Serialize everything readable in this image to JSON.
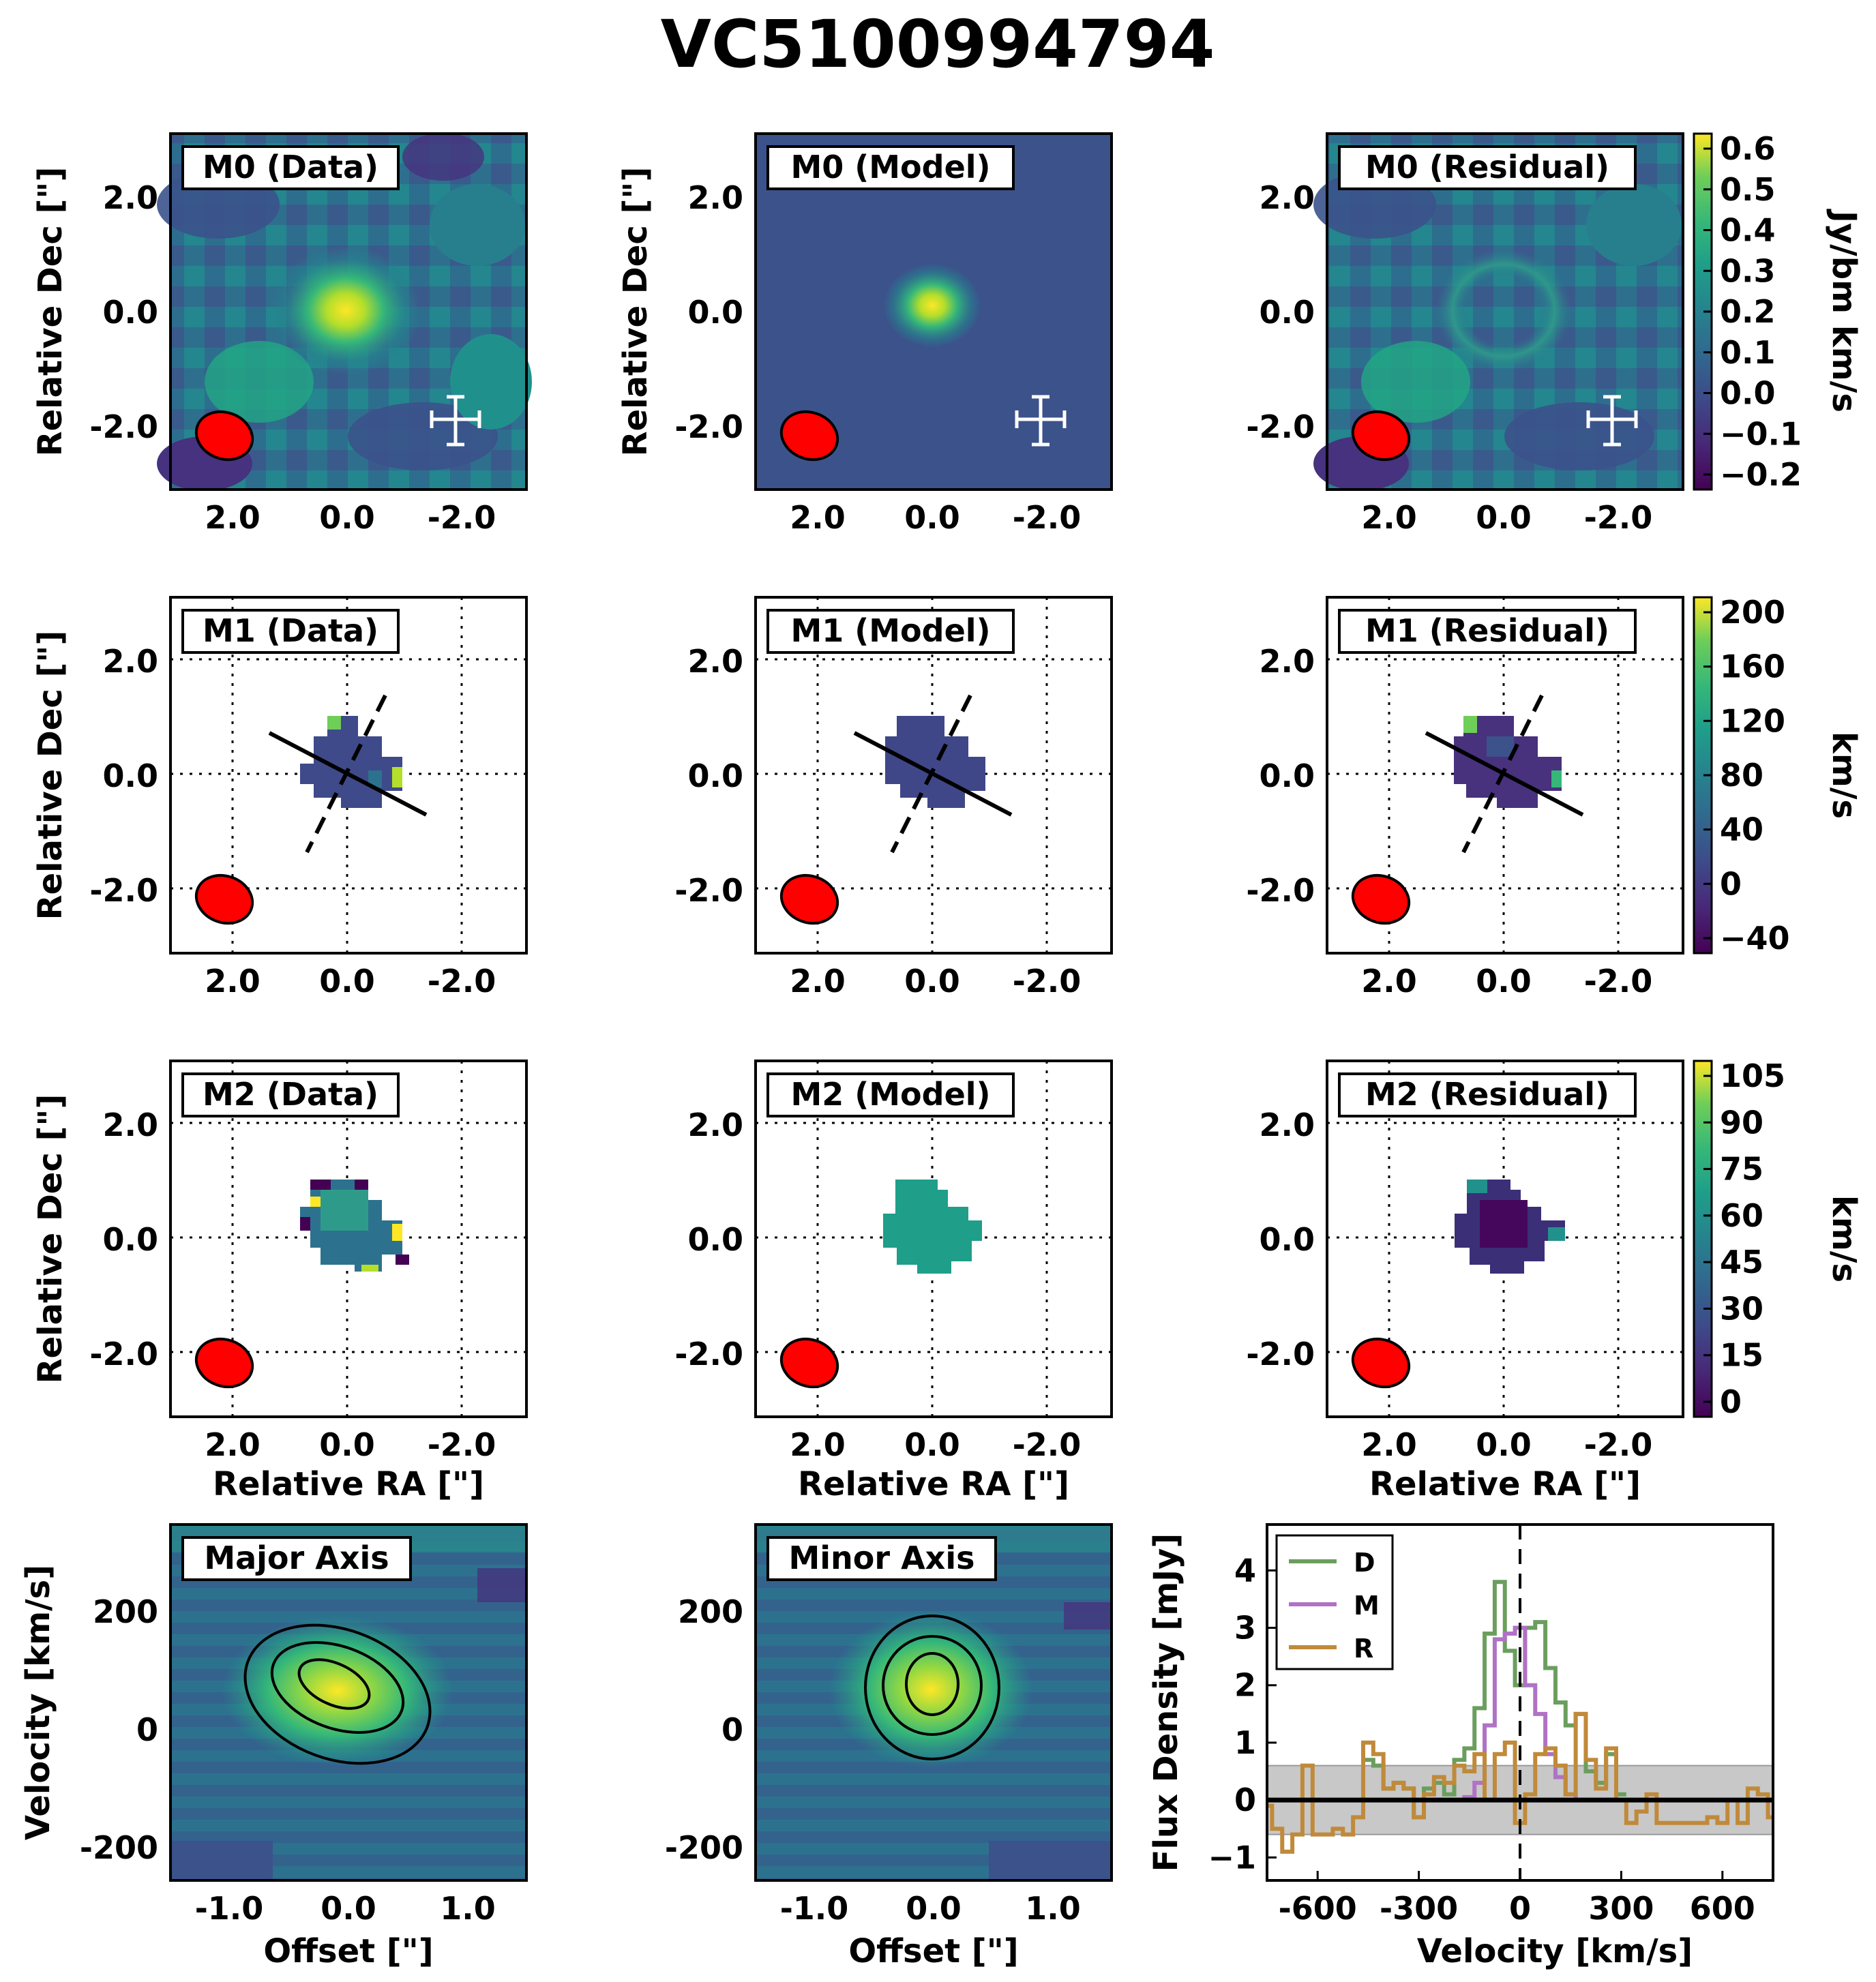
{
  "figure": {
    "title": "VC5100994794",
    "colors": {
      "viridis_low": "#440154",
      "viridis_mid": "#21918c",
      "viridis_high": "#fde725",
      "beam": "#ff0000",
      "green": "#6b9e5e",
      "purple": "#b072c4",
      "orange": "#c08a3a"
    }
  },
  "axes_labels": {
    "dec": "Relative Dec [\"]",
    "ra": "Relative RA [\"]",
    "velocity": "Velocity [km/s]",
    "offset": "Offset [\"]",
    "flux": "Flux Density [mJy]"
  },
  "map_ticks": [
    "2.0",
    "0.0",
    "-2.0"
  ],
  "panels": {
    "m0": [
      "M0 (Data)",
      "M0 (Model)",
      "M0 (Residual)"
    ],
    "m1": [
      "M1 (Data)",
      "M1 (Model)",
      "M1 (Residual)"
    ],
    "m2": [
      "M2 (Data)",
      "M2 (Model)",
      "M2 (Residual)"
    ],
    "pv": [
      "Major Axis",
      "Minor Axis"
    ]
  },
  "colorbars": [
    {
      "label": "Jy/bm km/s",
      "range": [
        -0.22,
        0.62
      ],
      "ticks": [
        "0.6",
        "0.5",
        "0.4",
        "0.3",
        "0.2",
        "0.1",
        "0.0",
        "−0.1",
        "−0.2"
      ]
    },
    {
      "label": "km/s",
      "range": [
        -55,
        220
      ],
      "ticks": [
        "200",
        "160",
        "120",
        "80",
        "40",
        "0",
        "−40"
      ]
    },
    {
      "label": "km/s",
      "range": [
        0,
        110
      ],
      "ticks": [
        "105",
        "90",
        "75",
        "60",
        "45",
        "30",
        "15",
        "0"
      ]
    }
  ],
  "pv_ticks": {
    "y": [
      "200",
      "0",
      "-200"
    ],
    "x": [
      "-1.0",
      "0.0",
      "1.0"
    ]
  },
  "chart_data": {
    "type": "line",
    "title": "",
    "xlabel": "Velocity [km/s]",
    "ylabel": "Flux Density [mJy]",
    "xlim": [
      -750,
      750
    ],
    "ylim": [
      -1.4,
      4.8
    ],
    "xticks": [
      "-600",
      "-300",
      "0",
      "300",
      "600"
    ],
    "yticks": [
      "4",
      "3",
      "2",
      "1",
      "0",
      "−1"
    ],
    "noise_band": [
      -0.6,
      0.6
    ],
    "series": [
      {
        "name": "D",
        "x": [
          -450,
          -420,
          -390,
          -360,
          -330,
          -300,
          -270,
          -240,
          -210,
          -180,
          -150,
          -120,
          -90,
          -60,
          -30,
          0,
          30,
          60,
          90,
          120,
          150,
          180,
          210,
          240,
          270,
          300
        ],
        "values": [
          0.7,
          0.6,
          0.2,
          0.3,
          0.2,
          -0.3,
          0.2,
          0.3,
          0.1,
          0.7,
          0.9,
          1.6,
          2.9,
          3.8,
          2.6,
          2.0,
          3.0,
          3.1,
          2.3,
          1.7,
          1.3,
          1.5,
          0.5,
          0.3,
          0.8,
          0.1
        ]
      },
      {
        "name": "M",
        "x": [
          -180,
          -150,
          -120,
          -90,
          -60,
          -30,
          0,
          30,
          60,
          90,
          120,
          150,
          180,
          210
        ],
        "values": [
          0.0,
          0.05,
          0.3,
          1.3,
          2.8,
          2.9,
          3.0,
          2.0,
          1.5,
          0.8,
          0.4,
          0.1,
          0.0,
          0.0
        ]
      },
      {
        "name": "R",
        "x": [
          -750,
          -720,
          -690,
          -660,
          -630,
          -600,
          -570,
          -540,
          -510,
          -480,
          -450,
          -420,
          -390,
          -360,
          -330,
          -300,
          -270,
          -240,
          -210,
          -180,
          -150,
          -120,
          -90,
          -60,
          -30,
          0,
          30,
          60,
          90,
          120,
          150,
          180,
          210,
          240,
          270,
          300,
          330,
          360,
          390,
          420,
          450,
          480,
          510,
          540,
          570,
          600,
          630,
          660,
          690,
          720,
          750
        ],
        "values": [
          -0.1,
          -0.5,
          -0.9,
          -0.6,
          0.6,
          -0.6,
          -0.6,
          -0.5,
          -0.6,
          -0.3,
          1.0,
          0.8,
          0.2,
          0.3,
          0.2,
          -0.3,
          0.1,
          0.4,
          0.3,
          0.6,
          0.5,
          0.8,
          0.0,
          0.8,
          1.0,
          -0.4,
          0.1,
          0.8,
          0.9,
          0.6,
          0.1,
          1.5,
          0.7,
          0.2,
          0.9,
          0.0,
          -0.4,
          -0.2,
          0.1,
          -0.4,
          -0.4,
          -0.4,
          -0.4,
          -0.4,
          -0.3,
          -0.4,
          0.0,
          -0.4,
          0.2,
          0.1,
          -0.3
        ]
      }
    ],
    "zero_line": 0,
    "systemic_marker": 0
  }
}
